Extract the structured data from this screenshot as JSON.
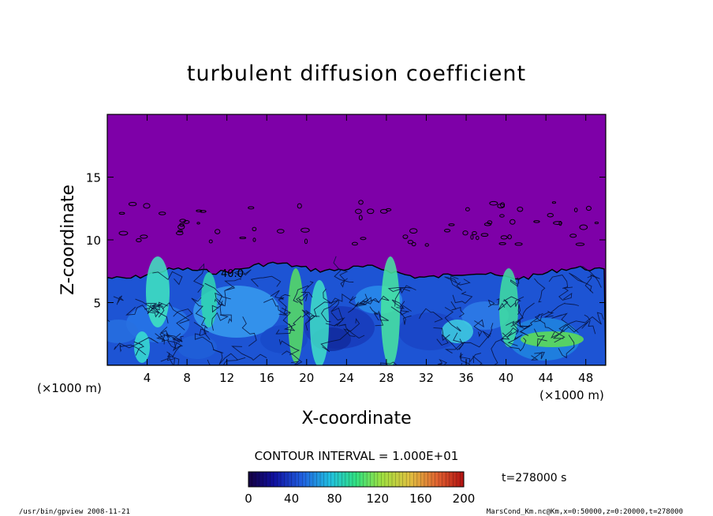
{
  "chart_data": {
    "type": "heatmap",
    "title": "turbulent diffusion coefficient",
    "xlabel": "X-coordinate",
    "ylabel": "Z-coordinate",
    "x_unit": "(×1000 m)",
    "y_unit": "(×1000 m)",
    "xlim": [
      0,
      50
    ],
    "ylim": [
      0,
      20
    ],
    "x_ticks": [
      4,
      8,
      12,
      16,
      20,
      24,
      28,
      32,
      36,
      40,
      44,
      48
    ],
    "y_ticks": [
      5,
      10,
      15
    ],
    "contour_interval": "CONTOUR INTERVAL = 1.000E+01",
    "contour_label": "40.0",
    "time_label": "t=278000 s",
    "colorbar": {
      "range": [
        0,
        200
      ],
      "ticks": [
        0,
        40,
        80,
        120,
        160,
        200
      ]
    },
    "background_color": "#7e00a8",
    "mixed_layer_top_km": 7.5,
    "footer_left": "/usr/bin/gpview  2008-11-21",
    "footer_right": "MarsCond_Km.nc@Km,x=0:50000,z=0:20000,t=278000"
  }
}
